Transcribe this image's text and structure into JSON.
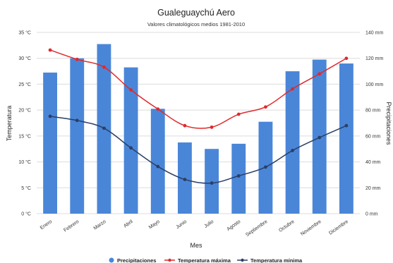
{
  "chart_data": {
    "type": "bar",
    "title": "Gualeguaychú Aero",
    "subtitle": "Valores climatológicos medios 1981-2010",
    "xlabel": "Mes",
    "ylabel_left": "Temperatura",
    "ylabel_right": "Precipitaciones",
    "categories": [
      "Enero",
      "Febrero",
      "Marzo",
      "Abril",
      "Mayo",
      "Junio",
      "Julio",
      "Agosto",
      "Septiembre",
      "Octubre",
      "Noviembre",
      "Diciembre"
    ],
    "y_left": {
      "min": 0,
      "max": 35,
      "ticks": [
        0,
        5,
        10,
        15,
        20,
        25,
        30,
        35
      ],
      "tick_labels": [
        "0 °C",
        "5 °C",
        "10 °C",
        "15 °C",
        "20 °C",
        "25 °C",
        "30 °C",
        "35 °C"
      ]
    },
    "y_right": {
      "min": 0,
      "max": 140,
      "ticks": [
        0,
        20,
        40,
        60,
        80,
        100,
        120,
        140
      ],
      "tick_labels": [
        "0 mm",
        "20 mm",
        "40 mm",
        "60 mm",
        "80 mm",
        "100 mm",
        "120 mm",
        "140 mm"
      ]
    },
    "grid": true,
    "legend_position": "bottom",
    "series": [
      {
        "name": "Precipitaciones",
        "kind": "bar",
        "axis": "right",
        "color": "#4a86d8",
        "values": [
          109,
          120,
          131,
          113,
          81,
          55,
          50,
          54,
          71,
          110,
          119,
          116
        ]
      },
      {
        "name": "Temperatura máxima",
        "kind": "line",
        "axis": "left",
        "color": "#e0292b",
        "values": [
          31.6,
          29.8,
          28.3,
          23.9,
          20.2,
          17.0,
          16.7,
          19.2,
          20.6,
          24.1,
          27.0,
          30.0
        ]
      },
      {
        "name": "Temperatura mínima",
        "kind": "line",
        "axis": "left",
        "color": "#2b3f66",
        "values": [
          18.8,
          18.0,
          16.5,
          12.7,
          9.1,
          6.6,
          5.9,
          7.3,
          9.0,
          12.2,
          14.7,
          17.0
        ]
      }
    ]
  }
}
